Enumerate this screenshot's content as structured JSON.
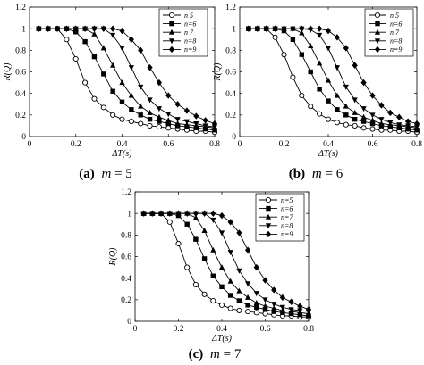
{
  "panels": [
    {
      "caption_letter": "(a)",
      "caption_var": "m",
      "caption_rest": " = 5"
    },
    {
      "caption_letter": "(b)",
      "caption_var": "m",
      "caption_rest": " = 6"
    },
    {
      "caption_letter": "(c)",
      "caption_var": "m",
      "caption_rest": " = 7"
    }
  ],
  "chart_data": [
    {
      "type": "line",
      "title": "",
      "xlabel": "ΔT(s)",
      "ylabel": "R(Q)",
      "xlim": [
        0,
        0.8
      ],
      "ylim": [
        0,
        1.2
      ],
      "xticks": [
        "0",
        "0.2",
        "0.4",
        "0.6",
        "0.8"
      ],
      "yticks": [
        "0",
        "0.2",
        "0.4",
        "0.6",
        "0.8",
        "1",
        "1.2"
      ],
      "legend_position": "top-right",
      "grid": false,
      "x": [
        0.04,
        0.08,
        0.12,
        0.16,
        0.2,
        0.24,
        0.28,
        0.32,
        0.36,
        0.4,
        0.44,
        0.48,
        0.52,
        0.56,
        0.6,
        0.64,
        0.68,
        0.72,
        0.76,
        0.8
      ],
      "series": [
        {
          "name": "n 5",
          "marker": "circle-open",
          "values": [
            1.0,
            1.0,
            1.0,
            0.9,
            0.72,
            0.5,
            0.35,
            0.27,
            0.2,
            0.16,
            0.14,
            0.12,
            0.1,
            0.09,
            0.08,
            0.07,
            0.06,
            0.05,
            0.05,
            0.04
          ]
        },
        {
          "name": "n=6",
          "marker": "square",
          "values": [
            1.0,
            1.0,
            1.0,
            1.0,
            0.97,
            0.88,
            0.74,
            0.58,
            0.42,
            0.32,
            0.25,
            0.2,
            0.16,
            0.14,
            0.12,
            0.1,
            0.09,
            0.08,
            0.07,
            0.06
          ]
        },
        {
          "name": "n 7",
          "marker": "triangle-up",
          "values": [
            1.0,
            1.0,
            1.0,
            1.0,
            1.0,
            1.0,
            0.95,
            0.82,
            0.66,
            0.5,
            0.38,
            0.28,
            0.22,
            0.18,
            0.15,
            0.12,
            0.11,
            0.1,
            0.09,
            0.08
          ]
        },
        {
          "name": "n=8",
          "marker": "triangle-down",
          "values": [
            1.0,
            1.0,
            1.0,
            1.0,
            1.0,
            1.0,
            1.0,
            1.0,
            0.94,
            0.82,
            0.64,
            0.46,
            0.34,
            0.26,
            0.21,
            0.16,
            0.14,
            0.12,
            0.1,
            0.09
          ]
        },
        {
          "name": "n=9",
          "marker": "diamond",
          "values": [
            1.0,
            1.0,
            1.0,
            1.0,
            1.0,
            1.0,
            1.0,
            1.0,
            1.0,
            0.98,
            0.9,
            0.8,
            0.64,
            0.5,
            0.38,
            0.3,
            0.24,
            0.19,
            0.15,
            0.12
          ]
        }
      ]
    },
    {
      "type": "line",
      "title": "",
      "xlabel": "ΔT(s)",
      "ylabel": "R(Q)",
      "xlim": [
        0,
        0.8
      ],
      "ylim": [
        0,
        1.2
      ],
      "xticks": [
        "0",
        "0.2",
        "0.4",
        "0.6",
        "0.8"
      ],
      "yticks": [
        "0",
        "0.2",
        "0.4",
        "0.6",
        "0.8",
        "1",
        "1.2"
      ],
      "legend_position": "top-right",
      "grid": false,
      "x": [
        0.04,
        0.08,
        0.12,
        0.16,
        0.2,
        0.24,
        0.28,
        0.32,
        0.36,
        0.4,
        0.44,
        0.48,
        0.52,
        0.56,
        0.6,
        0.64,
        0.68,
        0.72,
        0.76,
        0.8
      ],
      "series": [
        {
          "name": "n 5",
          "marker": "circle-open",
          "values": [
            1.0,
            1.0,
            1.0,
            0.92,
            0.76,
            0.55,
            0.38,
            0.28,
            0.21,
            0.16,
            0.13,
            0.11,
            0.1,
            0.08,
            0.07,
            0.06,
            0.06,
            0.05,
            0.05,
            0.04
          ]
        },
        {
          "name": "n=6",
          "marker": "square",
          "values": [
            1.0,
            1.0,
            1.0,
            1.0,
            0.98,
            0.9,
            0.76,
            0.6,
            0.44,
            0.33,
            0.25,
            0.2,
            0.16,
            0.14,
            0.12,
            0.1,
            0.09,
            0.08,
            0.07,
            0.06
          ]
        },
        {
          "name": "n 7",
          "marker": "triangle-up",
          "values": [
            1.0,
            1.0,
            1.0,
            1.0,
            1.0,
            1.0,
            0.96,
            0.84,
            0.68,
            0.52,
            0.38,
            0.28,
            0.22,
            0.18,
            0.15,
            0.12,
            0.11,
            0.1,
            0.09,
            0.08
          ]
        },
        {
          "name": "n=8",
          "marker": "triangle-down",
          "values": [
            1.0,
            1.0,
            1.0,
            1.0,
            1.0,
            1.0,
            1.0,
            0.99,
            0.94,
            0.82,
            0.64,
            0.46,
            0.34,
            0.26,
            0.2,
            0.16,
            0.13,
            0.11,
            0.1,
            0.09
          ]
        },
        {
          "name": "n=9",
          "marker": "diamond",
          "values": [
            1.0,
            1.0,
            1.0,
            1.0,
            1.0,
            1.0,
            1.0,
            1.0,
            1.0,
            0.98,
            0.92,
            0.82,
            0.66,
            0.5,
            0.38,
            0.29,
            0.22,
            0.18,
            0.14,
            0.12
          ]
        }
      ]
    },
    {
      "type": "line",
      "title": "",
      "xlabel": "ΔT(s)",
      "ylabel": "R(Q)",
      "xlim": [
        0,
        0.8
      ],
      "ylim": [
        0,
        1.2
      ],
      "xticks": [
        "0",
        "0.2",
        "0.4",
        "0.6",
        "0.8"
      ],
      "yticks": [
        "0",
        "0.2",
        "0.4",
        "0.6",
        "0.8",
        "1",
        "1.2"
      ],
      "legend_position": "top-right",
      "grid": false,
      "x": [
        0.04,
        0.08,
        0.12,
        0.16,
        0.2,
        0.24,
        0.28,
        0.32,
        0.36,
        0.4,
        0.44,
        0.48,
        0.52,
        0.56,
        0.6,
        0.64,
        0.68,
        0.72,
        0.76,
        0.8
      ],
      "series": [
        {
          "name": "n=5",
          "marker": "circle-open",
          "values": [
            1.0,
            1.0,
            1.0,
            0.92,
            0.72,
            0.5,
            0.34,
            0.25,
            0.19,
            0.15,
            0.12,
            0.1,
            0.09,
            0.08,
            0.07,
            0.06,
            0.05,
            0.05,
            0.04,
            0.04
          ]
        },
        {
          "name": "n=6",
          "marker": "square",
          "values": [
            1.0,
            1.0,
            1.0,
            1.0,
            0.98,
            0.9,
            0.76,
            0.58,
            0.42,
            0.32,
            0.24,
            0.19,
            0.15,
            0.13,
            0.11,
            0.09,
            0.08,
            0.07,
            0.06,
            0.05
          ]
        },
        {
          "name": "n=7",
          "marker": "triangle-up",
          "values": [
            1.0,
            1.0,
            1.0,
            1.0,
            1.0,
            1.0,
            0.96,
            0.84,
            0.66,
            0.5,
            0.37,
            0.28,
            0.22,
            0.17,
            0.14,
            0.12,
            0.1,
            0.09,
            0.08,
            0.07
          ]
        },
        {
          "name": "n=8",
          "marker": "triangle-down",
          "values": [
            1.0,
            1.0,
            1.0,
            1.0,
            1.0,
            1.0,
            1.0,
            1.0,
            0.94,
            0.82,
            0.64,
            0.47,
            0.35,
            0.26,
            0.2,
            0.16,
            0.13,
            0.11,
            0.1,
            0.09
          ]
        },
        {
          "name": "n=9",
          "marker": "diamond",
          "values": [
            1.0,
            1.0,
            1.0,
            1.0,
            1.0,
            1.0,
            1.0,
            1.0,
            1.0,
            0.98,
            0.92,
            0.82,
            0.66,
            0.5,
            0.38,
            0.29,
            0.22,
            0.18,
            0.14,
            0.11
          ]
        }
      ]
    }
  ]
}
